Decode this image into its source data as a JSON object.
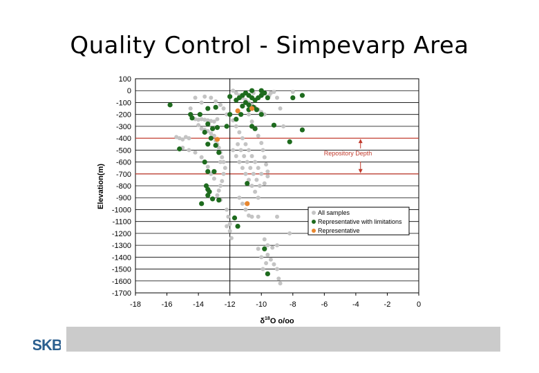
{
  "slide": {
    "title": "Quality Control - Simpevarp Area",
    "logo_text": "SKB"
  },
  "colors": {
    "all_samples": "#c4c4c4",
    "representative_limited": "#1e6b1e",
    "representative": "#e8862e",
    "repository_lines": "#c0392b",
    "footer_bar": "#cbcbcb",
    "logo": "#2b5f8f"
  },
  "chart_data": {
    "type": "scatter",
    "title": "",
    "xlabel_prefix": "δ",
    "xlabel_sup": "18",
    "xlabel_suffix": "O o/oo",
    "ylabel": "Elevation(m)",
    "xlim": [
      -18,
      0
    ],
    "ylim": [
      -1700,
      100
    ],
    "xticks": [
      -18,
      -16,
      -14,
      -12,
      -10,
      -8,
      -6,
      -4,
      -2,
      0
    ],
    "yticks": [
      100,
      0,
      -100,
      -200,
      -300,
      -400,
      -500,
      -600,
      -700,
      -800,
      -900,
      -1000,
      -1100,
      -1200,
      -1300,
      -1400,
      -1500,
      -1600,
      -1700
    ],
    "grid": "horizontal",
    "reference_vline_x": -12,
    "repository_depth": {
      "label": "Repository Depth",
      "top": -400,
      "bottom": -700
    },
    "legend_position": "right-middle",
    "series": [
      {
        "name": "All samples",
        "color": "#c4c4c4",
        "points": [
          [
            -15.4,
            -390
          ],
          [
            -15.2,
            -400
          ],
          [
            -15,
            -410
          ],
          [
            -14.8,
            -390
          ],
          [
            -14.6,
            -400
          ],
          [
            -14.5,
            -150
          ],
          [
            -14.4,
            -220
          ],
          [
            -14.2,
            -240
          ],
          [
            -14.0,
            -245
          ],
          [
            -13.8,
            -240
          ],
          [
            -13.6,
            -245
          ],
          [
            -13.4,
            -250
          ],
          [
            -13.2,
            -255
          ],
          [
            -13.0,
            -260
          ],
          [
            -12.8,
            -240
          ],
          [
            -14.0,
            -290
          ],
          [
            -13.8,
            -320
          ],
          [
            -13.6,
            -330
          ],
          [
            -13.4,
            -340
          ],
          [
            -13.2,
            -360
          ],
          [
            -13.0,
            -380
          ],
          [
            -12.9,
            -420
          ],
          [
            -12.8,
            -450
          ],
          [
            -12.7,
            -480
          ],
          [
            -12.6,
            -520
          ],
          [
            -12.5,
            -560
          ],
          [
            -12.4,
            -600
          ],
          [
            -12.3,
            -650
          ],
          [
            -12.4,
            -700
          ],
          [
            -12.5,
            -760
          ],
          [
            -12.6,
            -800
          ],
          [
            -12.7,
            -840
          ],
          [
            -12.8,
            -880
          ],
          [
            -12.6,
            -920
          ],
          [
            -15.0,
            -480
          ],
          [
            -14.6,
            -500
          ],
          [
            -14.2,
            -520
          ],
          [
            -13.8,
            -560
          ],
          [
            -13.6,
            -600
          ],
          [
            -13.4,
            -640
          ],
          [
            -13.2,
            -700
          ],
          [
            -13.0,
            -740
          ],
          [
            -12.2,
            -1000
          ],
          [
            -12.1,
            -1060
          ],
          [
            -12.0,
            -1120
          ],
          [
            -12.0,
            -1180
          ],
          [
            -11.9,
            -1240
          ],
          [
            -12.2,
            -1140
          ],
          [
            -13.6,
            -50
          ],
          [
            -13.2,
            -60
          ],
          [
            -12.9,
            -90
          ],
          [
            -12.6,
            -120
          ],
          [
            -12.4,
            -150
          ],
          [
            -12.2,
            -200
          ],
          [
            -11.8,
            0
          ],
          [
            -11.6,
            -20
          ],
          [
            -11.4,
            -40
          ],
          [
            -11.2,
            -60
          ],
          [
            -11.0,
            -80
          ],
          [
            -10.8,
            -100
          ],
          [
            -10.6,
            -120
          ],
          [
            -10.4,
            -140
          ],
          [
            -10.2,
            -160
          ],
          [
            -10.0,
            -180
          ],
          [
            -9.8,
            -200
          ],
          [
            -9.6,
            -50
          ],
          [
            -9.4,
            -20
          ],
          [
            -9.2,
            -10
          ],
          [
            -9.0,
            -60
          ],
          [
            -8.8,
            -150
          ],
          [
            -8.6,
            -300
          ],
          [
            -11.8,
            -250
          ],
          [
            -11.6,
            -300
          ],
          [
            -11.4,
            -350
          ],
          [
            -11.2,
            -400
          ],
          [
            -11.0,
            -450
          ],
          [
            -10.8,
            -500
          ],
          [
            -10.6,
            -550
          ],
          [
            -10.4,
            -600
          ],
          [
            -10.2,
            -650
          ],
          [
            -10.0,
            -700
          ],
          [
            -11.8,
            -500
          ],
          [
            -11.6,
            -550
          ],
          [
            -11.4,
            -600
          ],
          [
            -11.2,
            -650
          ],
          [
            -11.0,
            -700
          ],
          [
            -10.8,
            -750
          ],
          [
            -10.6,
            -800
          ],
          [
            -10.4,
            -850
          ],
          [
            -10.2,
            -900
          ],
          [
            -11.5,
            -450
          ],
          [
            -11.3,
            -500
          ],
          [
            -11.1,
            -550
          ],
          [
            -10.9,
            -600
          ],
          [
            -10.7,
            -650
          ],
          [
            -10.5,
            -700
          ],
          [
            -10.3,
            -750
          ],
          [
            -10.1,
            -800
          ],
          [
            -11.4,
            -900
          ],
          [
            -11.2,
            -950
          ],
          [
            -11.0,
            -1000
          ],
          [
            -10.8,
            -1050
          ],
          [
            -10.6,
            -1060
          ],
          [
            -10.2,
            -1060
          ],
          [
            -9.0,
            -1060
          ],
          [
            -8.2,
            -1200
          ],
          [
            -9.8,
            -1250
          ],
          [
            -9.6,
            -1300
          ],
          [
            -9.3,
            -1320
          ],
          [
            -9.0,
            -1300
          ],
          [
            -9.6,
            -1380
          ],
          [
            -9.4,
            -1420
          ],
          [
            -9.2,
            -1460
          ],
          [
            -9.0,
            -1500
          ],
          [
            -8.9,
            -1580
          ],
          [
            -8.8,
            -1620
          ],
          [
            -9.7,
            -1450
          ],
          [
            -9.9,
            -1500
          ],
          [
            -10.0,
            -1400
          ],
          [
            -10.2,
            -1330
          ],
          [
            -10.5,
            -20
          ],
          [
            -10.0,
            -30
          ],
          [
            -9.5,
            -40
          ],
          [
            -8.0,
            -10
          ],
          [
            -10.8,
            -200
          ],
          [
            -10.6,
            -260
          ],
          [
            -10.4,
            -320
          ],
          [
            -10.2,
            -380
          ],
          [
            -10.0,
            -440
          ],
          [
            -9.9,
            -500
          ],
          [
            -9.8,
            -560
          ],
          [
            -9.7,
            -620
          ],
          [
            -9.6,
            -680
          ],
          [
            -9.6,
            -720
          ],
          [
            -9.8,
            -780
          ],
          [
            -12.6,
            -600
          ],
          [
            -13.8,
            -100
          ],
          [
            -14.2,
            -60
          ]
        ]
      },
      {
        "name": "Representative with limitations",
        "color": "#1e6b1e",
        "points": [
          [
            -15.8,
            -120
          ],
          [
            -14.5,
            -200
          ],
          [
            -14.4,
            -230
          ],
          [
            -13.9,
            -200
          ],
          [
            -13.4,
            -150
          ],
          [
            -12.9,
            -140
          ],
          [
            -13.4,
            -280
          ],
          [
            -13.1,
            -320
          ],
          [
            -12.8,
            -310
          ],
          [
            -13.6,
            -350
          ],
          [
            -13.2,
            -400
          ],
          [
            -13.4,
            -450
          ],
          [
            -12.9,
            -460
          ],
          [
            -12.7,
            -520
          ],
          [
            -13.6,
            -600
          ],
          [
            -13.4,
            -680
          ],
          [
            -13.0,
            -680
          ],
          [
            -13.5,
            -800
          ],
          [
            -13.4,
            -830
          ],
          [
            -13.3,
            -850
          ],
          [
            -13.4,
            -880
          ],
          [
            -13.8,
            -950
          ],
          [
            -13.1,
            -910
          ],
          [
            -12.7,
            -920
          ],
          [
            -11.7,
            -1070
          ],
          [
            -11.5,
            -1140
          ],
          [
            -10.9,
            -780
          ],
          [
            -9.8,
            -1330
          ],
          [
            -9.6,
            -1540
          ],
          [
            -15.2,
            -490
          ],
          [
            -12.0,
            -50
          ],
          [
            -11.6,
            -80
          ],
          [
            -11.4,
            -60
          ],
          [
            -11.2,
            -40
          ],
          [
            -11.0,
            -20
          ],
          [
            -10.8,
            -40
          ],
          [
            -10.6,
            -60
          ],
          [
            -10.4,
            -80
          ],
          [
            -10.2,
            -60
          ],
          [
            -10.0,
            -40
          ],
          [
            -10.6,
            0
          ],
          [
            -10.0,
            0
          ],
          [
            -11.0,
            -100
          ],
          [
            -10.8,
            -120
          ],
          [
            -10.5,
            -140
          ],
          [
            -10.3,
            -160
          ],
          [
            -10.0,
            -200
          ],
          [
            -11.3,
            -200
          ],
          [
            -11.6,
            -240
          ],
          [
            -10.6,
            -300
          ],
          [
            -10.4,
            -320
          ],
          [
            -9.2,
            -290
          ],
          [
            -8.0,
            -60
          ],
          [
            -7.4,
            -40
          ],
          [
            -7.4,
            -330
          ],
          [
            -8.2,
            -430
          ],
          [
            -11.2,
            -130
          ],
          [
            -10.8,
            -160
          ],
          [
            -9.8,
            -20
          ],
          [
            -9.6,
            -60
          ],
          [
            -12.0,
            -200
          ],
          [
            -12.2,
            -300
          ]
        ]
      },
      {
        "name": "Representative",
        "color": "#e8862e",
        "points": [
          [
            -11.5,
            -170
          ],
          [
            -10.6,
            -150
          ],
          [
            -12.8,
            -410
          ],
          [
            -10.9,
            -950
          ]
        ]
      }
    ]
  }
}
